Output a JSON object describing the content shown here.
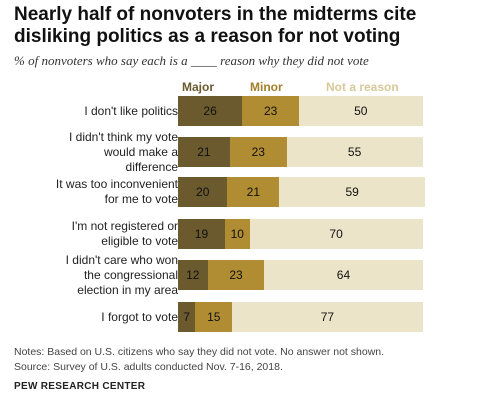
{
  "title": "Nearly half of nonvoters in the midterms cite disliking politics as a reason for not voting",
  "subtitle": "% of nonvoters who say each is a ____ reason why they did not vote",
  "colors": {
    "major": "#6b5a2e",
    "minor": "#b08c32",
    "not_a_reason": "#ece4c8"
  },
  "chart_data": {
    "type": "bar",
    "orientation": "horizontal",
    "stacked": true,
    "categories": [
      "I don't like politics",
      "I didn't think my vote would make a difference",
      "It was too inconvenient for me to vote",
      "I'm not registered or eligible to vote",
      "I didn't care who won the congressional election in my area",
      "I forgot to vote"
    ],
    "series": [
      {
        "name": "Major",
        "values": [
          26,
          21,
          20,
          19,
          12,
          7
        ]
      },
      {
        "name": "Minor",
        "values": [
          23,
          23,
          21,
          10,
          23,
          15
        ]
      },
      {
        "name": "Not a reason",
        "values": [
          50,
          55,
          59,
          70,
          64,
          77
        ]
      }
    ],
    "legend": "top"
  },
  "bar_label_lines": [
    [
      "I don't like politics"
    ],
    [
      "I didn't think my vote",
      "would make a",
      "difference"
    ],
    [
      "It was too inconvenient",
      "for me to vote"
    ],
    [
      "I'm not registered or",
      "eligible to vote"
    ],
    [
      "I didn't care who won",
      "the congressional",
      "election in my area"
    ],
    [
      "I forgot to vote"
    ]
  ],
  "notes": "Notes: Based on U.S. citizens who say they did not vote. No answer not shown.",
  "source": "Source: Survey of U.S. adults conducted Nov. 7-16, 2018.",
  "brand": "PEW RESEARCH CENTER"
}
